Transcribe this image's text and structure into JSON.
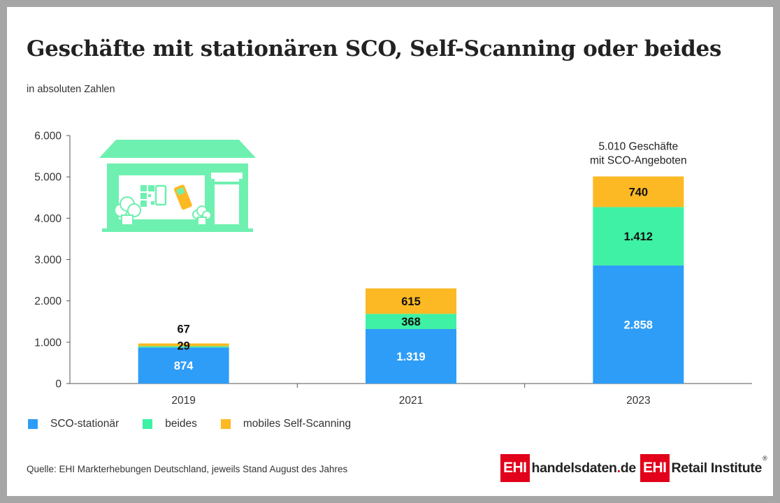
{
  "title": "Geschäfte mit stationären SCO, Self-Scanning oder beides",
  "subtitle": "in absoluten Zahlen",
  "chart_data": {
    "type": "bar",
    "stacked": true,
    "categories": [
      "2019",
      "2021",
      "2023"
    ],
    "series": [
      {
        "name": "SCO-stationär",
        "color": "#2e9df7",
        "values": [
          874,
          1319,
          2858
        ],
        "labels": [
          "874",
          "1.319",
          "2.858"
        ]
      },
      {
        "name": "beides",
        "color": "#3ef1a4",
        "values": [
          29,
          368,
          1412
        ],
        "labels": [
          "29",
          "368",
          "1.412"
        ]
      },
      {
        "name": "mobiles Self-Scanning",
        "color": "#fdb924",
        "values": [
          67,
          615,
          740
        ],
        "labels": [
          "67",
          "615",
          "740"
        ]
      }
    ],
    "ylim": [
      0,
      6000
    ],
    "yticks": [
      0,
      1000,
      2000,
      3000,
      4000,
      5000,
      6000
    ],
    "ytick_labels": [
      "0",
      "1.000",
      "2.000",
      "3.000",
      "4.000",
      "5.000",
      "6.000"
    ],
    "grid": false,
    "legend": "bottom-left",
    "annotation": {
      "category": "2023",
      "lines": [
        "5.010 Geschäfte",
        "mit SCO-Angeboten"
      ]
    }
  },
  "illustration": {
    "name": "store-illustration",
    "color": "#6ef0b0"
  },
  "source": "Quelle: EHI Markterhebungen Deutschland, jeweils Stand August des Jahres",
  "logos": {
    "left": {
      "box": "EHI",
      "text_main": "handelsdaten",
      "text_dot": ".",
      "text_end": "de"
    },
    "right": {
      "box": "EHI",
      "text": "Retail Institute",
      "reg": "®"
    }
  }
}
